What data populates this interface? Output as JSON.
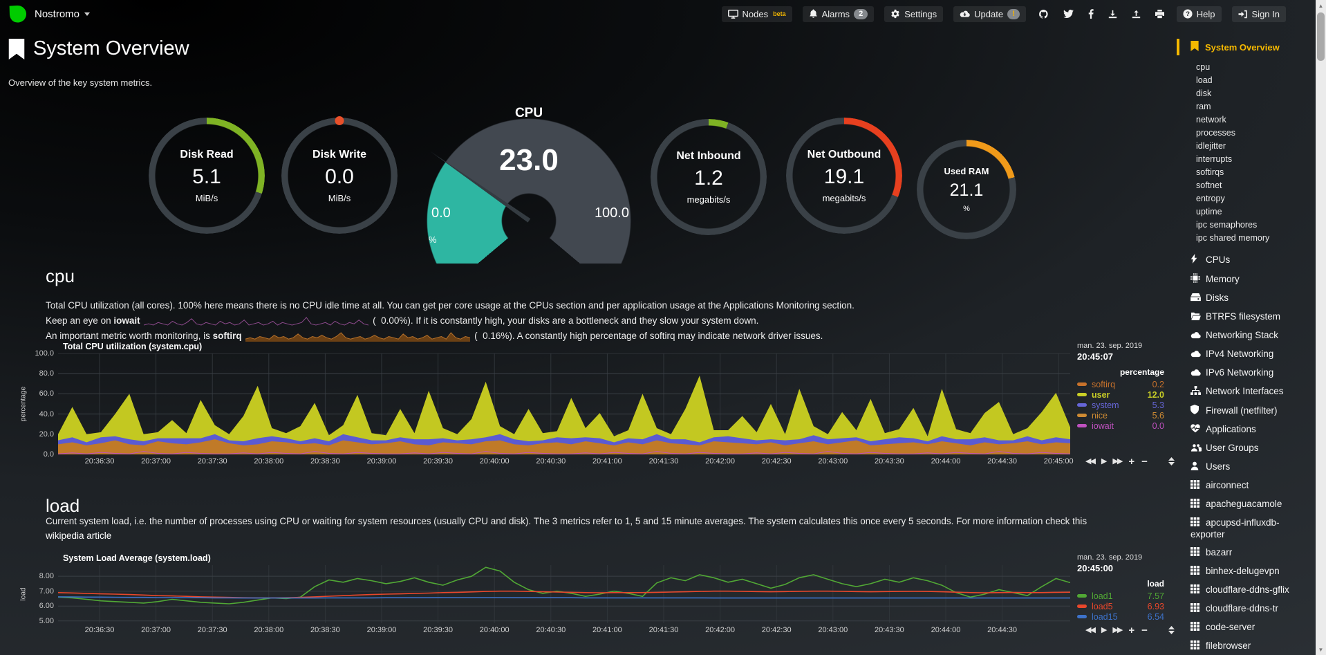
{
  "header": {
    "hostname": "Nostromo",
    "nav": [
      {
        "id": "nodes",
        "icon": "display",
        "label": "Nodes",
        "sup": "beta"
      },
      {
        "id": "alarms",
        "icon": "bell",
        "label": "Alarms",
        "badge": "2"
      },
      {
        "id": "settings",
        "icon": "gear",
        "label": "Settings"
      },
      {
        "id": "update",
        "icon": "cloud-download",
        "label": "Update",
        "badge": "!",
        "badge_style": "warn"
      },
      {
        "id": "github",
        "icon": "github"
      },
      {
        "id": "twitter",
        "icon": "twitter"
      },
      {
        "id": "facebook",
        "icon": "facebook"
      },
      {
        "id": "export",
        "icon": "download"
      },
      {
        "id": "import",
        "icon": "upload"
      },
      {
        "id": "print",
        "icon": "print"
      },
      {
        "id": "help",
        "icon": "question",
        "label": "Help"
      },
      {
        "id": "sign-in",
        "icon": "sign-in",
        "label": "Sign In"
      }
    ]
  },
  "page": {
    "title": "System Overview",
    "subtitle": "Overview of the key system metrics."
  },
  "gauges": [
    {
      "id": "disk-read",
      "style": "ring",
      "title": "Disk Read",
      "value": "5.1",
      "units": "MiB/s",
      "arc_pct": 30,
      "arc_color": "#7fb324"
    },
    {
      "id": "disk-write",
      "style": "ring",
      "title": "Disk Write",
      "value": "0.0",
      "units": "MiB/s",
      "arc_pct": 0,
      "arc_color": "#e8502a",
      "dot": true
    },
    {
      "id": "cpu",
      "style": "gauge",
      "title": "CPU",
      "value": "23.0",
      "min": "0.0",
      "max": "100.0",
      "units": "%",
      "pct": 23,
      "fill_color": "#2eb6a2",
      "band_color": "#424850"
    },
    {
      "id": "net-inbound",
      "style": "ring",
      "title": "Net Inbound",
      "value": "1.2",
      "units": "megabits/s",
      "arc_pct": 5.5,
      "arc_color": "#7fb324"
    },
    {
      "id": "net-outbound",
      "style": "ring",
      "title": "Net Outbound",
      "value": "19.1",
      "units": "megabits/s",
      "arc_pct": 31,
      "arc_color": "#e8401f"
    },
    {
      "id": "used-ram",
      "style": "ring",
      "small": true,
      "title": "Used RAM",
      "value": "21.1",
      "units": "%",
      "arc_pct": 21,
      "arc_color": "#f09a1a"
    }
  ],
  "ring_base_color": "#3a4147",
  "ui": {
    "chart_toolbar": [
      "seek-backward",
      "play",
      "seek-forward",
      "zoom-in",
      "zoom-out"
    ],
    "resize": "resize-handle"
  },
  "sections": {
    "cpu": {
      "heading": "cpu",
      "desc1": "Total CPU utilization (all cores). 100% here means there is no CPU idle time at all. You can get per core usage at the CPUs section and per application usage at the Applications Monitoring section.",
      "desc2_pre": "Keep an eye on ",
      "desc2_bold": "iowait",
      "desc2_post": " (  0.00%). If it is constantly high, your disks are a bottleneck and they slow your system down.",
      "desc3_pre": "An important metric worth monitoring, is ",
      "desc3_bold": "softirq",
      "desc3_post": " (  0.16%). A constantly high percentage of softirq may indicate network driver issues.",
      "chart_title": "Total CPU utilization (system.cpu)",
      "ylabel": "percentage",
      "legend": {
        "date": "man. 23. sep. 2019",
        "time": "20:45:07",
        "header": "percentage",
        "rows": [
          {
            "name": "softirq",
            "value": "0.2",
            "color": "#c8722b"
          },
          {
            "name": "user",
            "value": "12.0",
            "color": "#c9ce26",
            "bold": true
          },
          {
            "name": "system",
            "value": "5.3",
            "color": "#6666d8"
          },
          {
            "name": "nice",
            "value": "5.6",
            "color": "#ce8b33"
          },
          {
            "name": "iowait",
            "value": "0.0",
            "color": "#bf51bf"
          }
        ]
      }
    },
    "load": {
      "heading": "load",
      "desc1": "Current system load, i.e. the number of processes using CPU or waiting for system resources (usually CPU and disk). The 3 metrics refer to 1, 5 and 15 minute averages. The system calculates this once every 5 seconds. For more information check this",
      "link_text": "wikipedia article",
      "chart_title": "System Load Average (system.load)",
      "ylabel": "load",
      "legend": {
        "date": "man. 23. sep. 2019",
        "time": "20:45:00",
        "header": "load",
        "rows": [
          {
            "name": "load1",
            "value": "7.57",
            "color": "#51a835"
          },
          {
            "name": "load5",
            "value": "6.93",
            "color": "#e8472b"
          },
          {
            "name": "load15",
            "value": "6.54",
            "color": "#3d72c9"
          }
        ]
      }
    }
  },
  "chart_data": [
    {
      "id": "system.cpu",
      "type": "area",
      "stacked": true,
      "title": "Total CPU utilization (system.cpu)",
      "xlabel": "",
      "ylabel": "percentage",
      "ylim": [
        0,
        100
      ],
      "yticks": [
        {
          "v": 100,
          "label": "100.0"
        },
        {
          "v": 80,
          "label": "80.0"
        },
        {
          "v": 60,
          "label": "60.0"
        },
        {
          "v": 40,
          "label": "40.0"
        },
        {
          "v": 20,
          "label": "20.0"
        },
        {
          "v": 0,
          "label": "0.0"
        }
      ],
      "xticks": [
        "20:36:30",
        "20:37:00",
        "20:37:30",
        "20:38:00",
        "20:38:30",
        "20:39:00",
        "20:39:30",
        "20:40:00",
        "20:40:30",
        "20:41:00",
        "20:41:30",
        "20:42:00",
        "20:42:30",
        "20:43:00",
        "20:43:30",
        "20:44:00",
        "20:44:30",
        "20:45:00"
      ],
      "series": [
        {
          "name": "nice",
          "color": "#c07a28",
          "values": [
            10,
            12,
            9,
            11,
            14,
            10,
            9,
            13,
            11,
            10,
            12,
            15,
            11,
            9,
            10,
            13,
            12,
            10,
            11,
            9,
            14,
            12,
            10,
            11,
            13,
            10,
            9,
            12,
            11,
            10,
            13,
            14,
            10,
            9,
            11,
            12,
            10,
            13,
            11,
            9,
            12,
            10,
            14,
            11,
            10,
            9,
            13,
            12,
            11,
            10,
            12,
            9,
            11,
            13,
            10,
            12,
            14,
            9,
            10,
            11,
            12,
            10,
            13,
            11,
            9,
            12,
            10,
            11,
            13,
            10,
            12,
            11
          ]
        },
        {
          "name": "system",
          "color": "#5b5bd2",
          "values": [
            4,
            5,
            3,
            6,
            4,
            5,
            4,
            3,
            5,
            6,
            4,
            5,
            3,
            4,
            6,
            5,
            4,
            3,
            5,
            4,
            6,
            5,
            4,
            3,
            4,
            5,
            6,
            4,
            3,
            5,
            4,
            6,
            5,
            4,
            3,
            5,
            6,
            4,
            5,
            3,
            4,
            5,
            6,
            4,
            5,
            3,
            4,
            6,
            5,
            4,
            3,
            5,
            4,
            6,
            5,
            4,
            3,
            4,
            5,
            6,
            4,
            3,
            5,
            4,
            6,
            5,
            4,
            3,
            5,
            4,
            5,
            4
          ]
        },
        {
          "name": "user",
          "color": "#c3c821",
          "values": [
            6,
            30,
            8,
            5,
            22,
            45,
            7,
            6,
            18,
            5,
            38,
            9,
            6,
            25,
            52,
            8,
            5,
            15,
            35,
            6,
            9,
            42,
            7,
            5,
            28,
            6,
            48,
            10,
            6,
            20,
            55,
            8,
            5,
            32,
            7,
            6,
            40,
            9,
            25,
            6,
            8,
            45,
            6,
            5,
            30,
            66,
            7,
            6,
            22,
            8,
            35,
            6,
            50,
            9,
            5,
            26,
            7,
            42,
            6,
            8,
            30,
            5,
            47,
            10,
            6,
            24,
            38,
            6,
            8,
            28,
            44,
            12
          ]
        },
        {
          "name": "iowait",
          "color": "#bf51bf",
          "line": true,
          "values": [
            0.5,
            1.5,
            0.5,
            2,
            1,
            0.5,
            3,
            1,
            0.5,
            2,
            1,
            0.5,
            0.5,
            1.5,
            0.5,
            2,
            1,
            0.5,
            3,
            1,
            0.5,
            2,
            1,
            0.5,
            0.5,
            1.5,
            0.5,
            2,
            1,
            0.5,
            3,
            1,
            0.5,
            2,
            1,
            0.5,
            0.5,
            1.5,
            0.5,
            2,
            1,
            0.5,
            3,
            1,
            0.5,
            2,
            1,
            0.5,
            0.5,
            1.5,
            0.5,
            2,
            1,
            0.5,
            3,
            1,
            0.5,
            2,
            1,
            0.5,
            0.5,
            1.5,
            0.5,
            2,
            1,
            0.5,
            3,
            1,
            0.5,
            2,
            1,
            0.5
          ]
        }
      ]
    },
    {
      "id": "system.load",
      "type": "line",
      "title": "System Load Average (system.load)",
      "xlabel": "",
      "ylabel": "load",
      "ylim": [
        4.85,
        8.75
      ],
      "yticks": [
        {
          "v": 8,
          "label": "8.00"
        },
        {
          "v": 7,
          "label": "7.00"
        },
        {
          "v": 6,
          "label": "6.00"
        },
        {
          "v": 5,
          "label": "5.00"
        }
      ],
      "xticks": [
        "20:36:30",
        "20:37:00",
        "20:37:30",
        "20:38:00",
        "20:38:30",
        "20:39:00",
        "20:39:30",
        "20:40:00",
        "20:40:30",
        "20:41:00",
        "20:41:30",
        "20:42:00",
        "20:42:30",
        "20:43:00",
        "20:43:30",
        "20:44:00",
        "20:44:30"
      ],
      "series": [
        {
          "name": "load1",
          "color": "#51a835",
          "values": [
            6.6,
            6.55,
            6.45,
            6.35,
            6.3,
            6.25,
            6.2,
            6.3,
            6.45,
            6.35,
            6.25,
            6.2,
            6.15,
            6.25,
            6.4,
            6.55,
            6.5,
            6.6,
            7.3,
            7.75,
            7.6,
            7.85,
            7.7,
            7.5,
            7.65,
            7.9,
            7.6,
            7.4,
            7.75,
            8.0,
            8.6,
            8.35,
            7.6,
            7.1,
            6.85,
            7.0,
            6.85,
            6.65,
            6.8,
            7.0,
            6.85,
            6.65,
            7.55,
            7.9,
            7.7,
            8.1,
            7.9,
            7.6,
            7.8,
            7.5,
            7.2,
            7.45,
            7.9,
            8.1,
            7.8,
            7.5,
            7.3,
            7.5,
            7.8,
            7.6,
            7.9,
            7.7,
            7.4,
            6.9,
            6.6,
            6.8,
            7.1,
            6.9,
            6.7,
            7.3,
            7.85,
            7.57
          ]
        },
        {
          "name": "load5",
          "color": "#e8472b",
          "values": [
            6.9,
            6.88,
            6.85,
            6.82,
            6.8,
            6.77,
            6.74,
            6.7,
            6.68,
            6.65,
            6.62,
            6.6,
            6.58,
            6.56,
            6.55,
            6.55,
            6.56,
            6.58,
            6.62,
            6.66,
            6.7,
            6.74,
            6.77,
            6.8,
            6.82,
            6.85,
            6.87,
            6.9,
            6.92,
            6.95,
            6.98,
            7.0,
            7.0,
            6.98,
            6.96,
            6.94,
            6.92,
            6.9,
            6.89,
            6.9,
            6.9,
            6.9,
            6.92,
            6.94,
            6.96,
            6.98,
            7.0,
            7.0,
            6.99,
            6.97,
            6.96,
            6.97,
            6.99,
            7.0,
            7.0,
            6.99,
            6.97,
            6.96,
            6.97,
            6.98,
            6.99,
            6.98,
            6.96,
            6.93,
            6.9,
            6.89,
            6.9,
            6.91,
            6.9,
            6.9,
            6.92,
            6.93
          ]
        },
        {
          "name": "load15",
          "color": "#3d72c9",
          "values": [
            6.62,
            6.61,
            6.6,
            6.6,
            6.59,
            6.58,
            6.58,
            6.57,
            6.57,
            6.56,
            6.56,
            6.55,
            6.55,
            6.54,
            6.54,
            6.54,
            6.54,
            6.54,
            6.54,
            6.55,
            6.55,
            6.55,
            6.55,
            6.56,
            6.56,
            6.56,
            6.56,
            6.57,
            6.57,
            6.57,
            6.57,
            6.57,
            6.56,
            6.56,
            6.56,
            6.56,
            6.56,
            6.55,
            6.55,
            6.55,
            6.55,
            6.55,
            6.55,
            6.55,
            6.55,
            6.55,
            6.54,
            6.54,
            6.54,
            6.54,
            6.54,
            6.54,
            6.54,
            6.54,
            6.54,
            6.54,
            6.54,
            6.54,
            6.54,
            6.54,
            6.54,
            6.54,
            6.54,
            6.54,
            6.54,
            6.54,
            6.54,
            6.54,
            6.54,
            6.54,
            6.54,
            6.54
          ]
        }
      ]
    },
    {
      "id": "iowait-sparkline",
      "type": "sparkline",
      "color": "#8d4a8d",
      "fill": null,
      "values": [
        0,
        1,
        0,
        2,
        1,
        0,
        3,
        1,
        0,
        2,
        5,
        1,
        0,
        2,
        1,
        0,
        3,
        1,
        2,
        0,
        1,
        4,
        0,
        1,
        2,
        0,
        1,
        3,
        0,
        2,
        1,
        0,
        1,
        2,
        6,
        1,
        0,
        1,
        2,
        0,
        3,
        1,
        0,
        2,
        1,
        4,
        1,
        0
      ]
    },
    {
      "id": "softirq-sparkline",
      "type": "sparkline",
      "color": "#b5702a",
      "fill": "#6b4014",
      "values": [
        1,
        2,
        1,
        3,
        2,
        1,
        4,
        2,
        3,
        1,
        2,
        5,
        2,
        1,
        3,
        2,
        4,
        2,
        1,
        3,
        6,
        2,
        1,
        2,
        3,
        1,
        2,
        4,
        2,
        1,
        3,
        2,
        1,
        5,
        2,
        3,
        1,
        2,
        4,
        1,
        2,
        3,
        1,
        6,
        2,
        1,
        3,
        2
      ]
    }
  ],
  "sidebar": {
    "active": {
      "label": "System Overview",
      "icon": "bookmark"
    },
    "subitems": [
      "cpu",
      "load",
      "disk",
      "ram",
      "network",
      "processes",
      "idlejitter",
      "interrupts",
      "softirqs",
      "softnet",
      "entropy",
      "uptime",
      "ipc semaphores",
      "ipc shared memory"
    ],
    "sections": [
      {
        "label": "CPUs",
        "icon": "bolt"
      },
      {
        "label": "Memory",
        "icon": "microchip"
      },
      {
        "label": "Disks",
        "icon": "hdd"
      },
      {
        "label": "BTRFS filesystem",
        "icon": "folder-open"
      },
      {
        "label": "Networking Stack",
        "icon": "cloud"
      },
      {
        "label": "IPv4 Networking",
        "icon": "cloud"
      },
      {
        "label": "IPv6 Networking",
        "icon": "cloud"
      },
      {
        "label": "Network Interfaces",
        "icon": "sitemap"
      },
      {
        "label": "Firewall (netfilter)",
        "icon": "shield"
      },
      {
        "label": "Applications",
        "icon": "heartbeat"
      },
      {
        "label": "User Groups",
        "icon": "users"
      },
      {
        "label": "Users",
        "icon": "user"
      },
      {
        "label": "airconnect",
        "icon": "cubes"
      },
      {
        "label": "apacheguacamole",
        "icon": "cubes"
      },
      {
        "label": "apcupsd-influxdb-exporter",
        "icon": "cubes"
      },
      {
        "label": "bazarr",
        "icon": "cubes"
      },
      {
        "label": "binhex-delugevpn",
        "icon": "cubes"
      },
      {
        "label": "cloudflare-ddns-gflix",
        "icon": "cubes"
      },
      {
        "label": "cloudflare-ddns-tr",
        "icon": "cubes"
      },
      {
        "label": "code-server",
        "icon": "cubes"
      },
      {
        "label": "filebrowser",
        "icon": "cubes"
      }
    ]
  }
}
